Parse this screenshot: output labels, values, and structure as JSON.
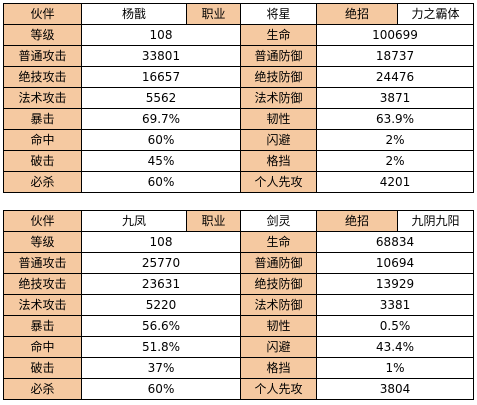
{
  "tables": [
    {
      "header": {
        "partner_label": "伙伴",
        "partner_name": "杨戬",
        "class_label": "职业",
        "class_name": "将星",
        "ult_label": "绝招",
        "ult_name": "力之霸体"
      },
      "rows": [
        {
          "l1": "等级",
          "v1": "108",
          "l2": "生命",
          "v2": "100699"
        },
        {
          "l1": "普通攻击",
          "v1": "33801",
          "l2": "普通防御",
          "v2": "18737"
        },
        {
          "l1": "绝技攻击",
          "v1": "16657",
          "l2": "绝技防御",
          "v2": "24476"
        },
        {
          "l1": "法术攻击",
          "v1": "5562",
          "l2": "法术防御",
          "v2": "3871"
        },
        {
          "l1": "暴击",
          "v1": "69.7%",
          "l2": "韧性",
          "v2": "63.9%"
        },
        {
          "l1": "命中",
          "v1": "60%",
          "l2": "闪避",
          "v2": "2%"
        },
        {
          "l1": "破击",
          "v1": "45%",
          "l2": "格挡",
          "v2": "2%"
        },
        {
          "l1": "必杀",
          "v1": "60%",
          "l2": "个人先攻",
          "v2": "4201"
        }
      ]
    },
    {
      "header": {
        "partner_label": "伙伴",
        "partner_name": "九凤",
        "class_label": "职业",
        "class_name": "剑灵",
        "ult_label": "绝招",
        "ult_name": "九阴九阳"
      },
      "rows": [
        {
          "l1": "等级",
          "v1": "108",
          "l2": "生命",
          "v2": "68834"
        },
        {
          "l1": "普通攻击",
          "v1": "25770",
          "l2": "普通防御",
          "v2": "10694"
        },
        {
          "l1": "绝技攻击",
          "v1": "23631",
          "l2": "绝技防御",
          "v2": "13929"
        },
        {
          "l1": "法术攻击",
          "v1": "5220",
          "l2": "法术防御",
          "v2": "3381"
        },
        {
          "l1": "暴击",
          "v1": "56.6%",
          "l2": "韧性",
          "v2": "0.5%"
        },
        {
          "l1": "命中",
          "v1": "51.8%",
          "l2": "闪避",
          "v2": "43.4%"
        },
        {
          "l1": "破击",
          "v1": "37%",
          "l2": "格挡",
          "v2": "1%"
        },
        {
          "l1": "必杀",
          "v1": "60%",
          "l2": "个人先攻",
          "v2": "3804"
        }
      ]
    }
  ],
  "colors": {
    "label_bg": "#f5c9a1",
    "value_bg": "#ffffff",
    "border": "#000000"
  }
}
